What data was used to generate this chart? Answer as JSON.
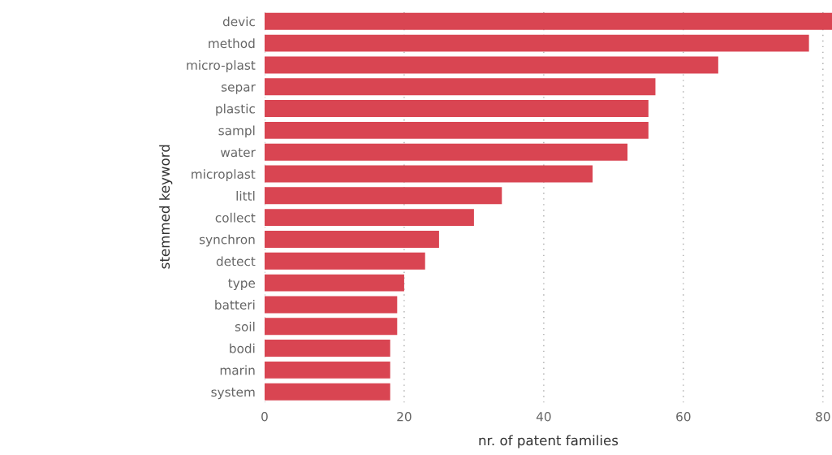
{
  "chart_data": {
    "type": "bar",
    "orientation": "horizontal",
    "xlabel": "nr. of patent families",
    "ylabel": "stemmed keyword",
    "categories": [
      "devic",
      "method",
      "micro-plast",
      "separ",
      "plastic",
      "sampl",
      "water",
      "microplast",
      "littl",
      "collect",
      "synchron",
      "detect",
      "type",
      "batteri",
      "soil",
      "bodi",
      "marin",
      "system"
    ],
    "values": [
      81.3,
      78,
      65,
      56,
      55,
      55,
      52,
      47,
      34,
      30,
      25,
      23,
      20,
      19,
      19,
      18,
      18,
      18
    ],
    "color": "#d94552",
    "xlim": [
      0,
      81.3
    ],
    "xticks": [
      0,
      20,
      40,
      60,
      80
    ],
    "grid": "x"
  }
}
